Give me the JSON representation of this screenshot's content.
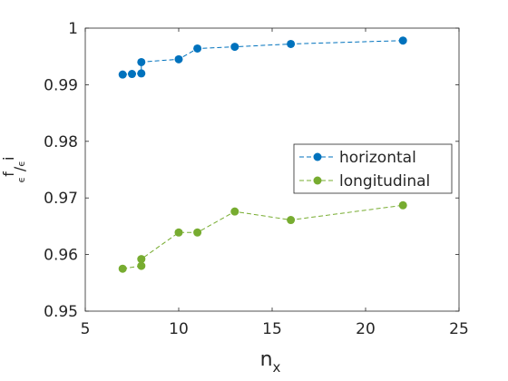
{
  "chart_data": {
    "type": "line",
    "xlabel": {
      "main": "n",
      "sub": "x"
    },
    "ylabel": {
      "num": "f",
      "num_sub": "ϵ",
      "den": "i",
      "den_sub": "ϵ"
    },
    "xlim": [
      5,
      25
    ],
    "ylim": [
      0.95,
      1.0
    ],
    "xticks": [
      "5",
      "10",
      "15",
      "20",
      "25"
    ],
    "yticks": [
      "0.95",
      "0.96",
      "0.97",
      "0.98",
      "0.99",
      "1"
    ],
    "grid": false,
    "legend_position": "right",
    "series": [
      {
        "name": "horizontal",
        "color": "#0072BD",
        "x": [
          7,
          7.5,
          8,
          8,
          10,
          11,
          13,
          16,
          22
        ],
        "y": [
          0.9918,
          0.9919,
          0.992,
          0.994,
          0.9945,
          0.9964,
          0.9967,
          0.9972,
          0.9978
        ]
      },
      {
        "name": "longitudinal",
        "color": "#77AC30",
        "x": [
          7,
          8,
          8,
          10,
          11,
          13,
          16,
          22
        ],
        "y": [
          0.9575,
          0.958,
          0.9592,
          0.9639,
          0.9639,
          0.9676,
          0.9661,
          0.9687
        ]
      }
    ]
  }
}
